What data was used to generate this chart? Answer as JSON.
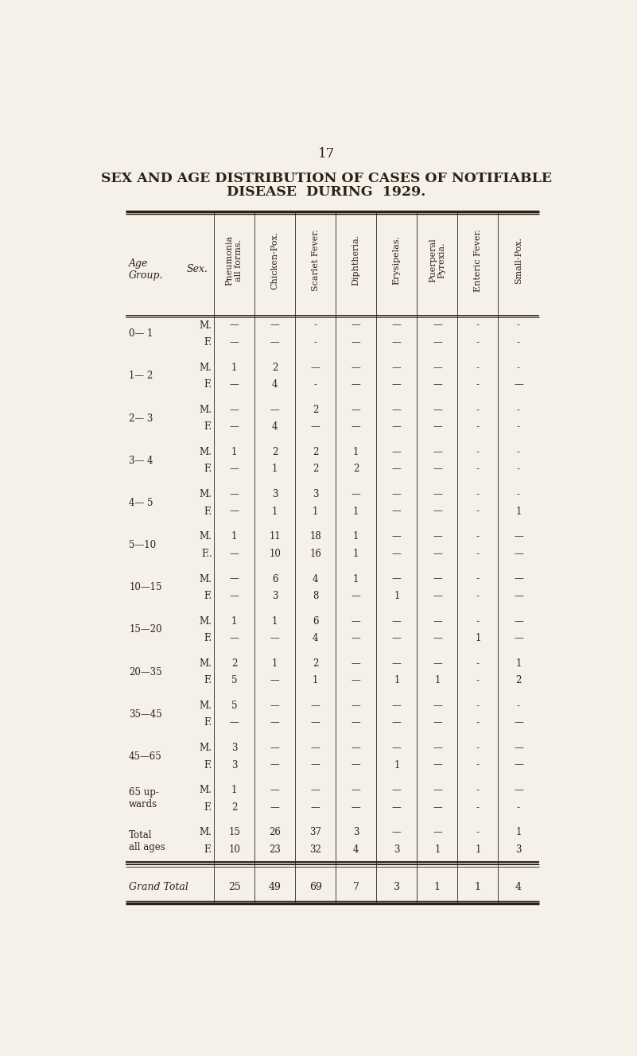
{
  "page_number": "17",
  "title_line1": "SEX AND AGE DISTRIBUTION OF CASES OF NOTIFIABLE",
  "title_line2": "DISEASE  DURING  1929.",
  "bg_color": "#f5f0e8",
  "text_color": "#2a2218",
  "col_headers": [
    "Pneumonia\nall forms.",
    "Chicken-Pox.",
    "Scarlet Fever.",
    "Diphtheria.",
    "Erysipelas.",
    "Puerperal\nPyrexia.",
    "Enteric Fever.",
    "Small-Pox."
  ],
  "groups": [
    {
      "age": "0— 1",
      "M": [
        "—",
        "—",
        "-",
        "—",
        "—",
        "—",
        "-",
        "-"
      ],
      "F": [
        "—",
        "—",
        "-",
        "—",
        "—",
        "—",
        "-",
        "-"
      ]
    },
    {
      "age": "1— 2",
      "M": [
        "1",
        "2",
        "—",
        "—",
        "—",
        "—",
        "-",
        "-"
      ],
      "F": [
        "—",
        "4",
        "-",
        "—",
        "—",
        "—",
        "-",
        "—"
      ]
    },
    {
      "age": "2— 3",
      "M": [
        "—",
        "—",
        "2",
        "—",
        "—",
        "—",
        "-",
        "-"
      ],
      "F": [
        "—",
        "4",
        "—",
        "—",
        "—",
        "—",
        "-",
        "-"
      ]
    },
    {
      "age": "3— 4",
      "M": [
        "1",
        "2",
        "2",
        "1",
        "—",
        "—",
        "-",
        "-"
      ],
      "F": [
        "—",
        "1",
        "2",
        "2",
        "—",
        "—",
        "-",
        "-"
      ]
    },
    {
      "age": "4— 5",
      "M": [
        "—",
        "3",
        "3",
        "—",
        "—",
        "—",
        "-",
        "-"
      ],
      "F": [
        "—",
        "1",
        "1",
        "1",
        "—",
        "—",
        "-",
        "1"
      ]
    },
    {
      "age": "5—10",
      "M": [
        "1",
        "11",
        "18",
        "1",
        "—",
        "—",
        "-",
        "—"
      ],
      "F": [
        "—",
        "10",
        "16",
        "1",
        "—",
        "—",
        "-",
        "—"
      ],
      "f_sex": "F.."
    },
    {
      "age": "10—15",
      "M": [
        "—",
        "6",
        "4",
        "1",
        "—",
        "—",
        "-",
        "—"
      ],
      "F": [
        "—",
        "3",
        "8",
        "—",
        "1",
        "—",
        "-",
        "—"
      ]
    },
    {
      "age": "15—20",
      "M": [
        "1",
        "1",
        "6",
        "—",
        "—",
        "—",
        "-",
        "—"
      ],
      "F": [
        "—",
        "—",
        "4",
        "—",
        "—",
        "—",
        "1",
        "—"
      ]
    },
    {
      "age": "20—35",
      "M": [
        "2",
        "1",
        "2",
        "—",
        "—",
        "—",
        "-",
        "1"
      ],
      "F": [
        "5",
        "—",
        "1",
        "—",
        "1",
        "1",
        "-",
        "2"
      ]
    },
    {
      "age": "35—45",
      "M": [
        "5",
        "—",
        "—",
        "—",
        "—",
        "—",
        "-",
        "-"
      ],
      "F": [
        "—",
        "—",
        "—",
        "—",
        "—",
        "—",
        "-",
        "—"
      ]
    },
    {
      "age": "45—65",
      "M": [
        "3",
        "—",
        "—",
        "—",
        "—",
        "—",
        "-",
        "—"
      ],
      "F": [
        "3",
        "—",
        "—",
        "—",
        "1",
        "—",
        "-",
        "—"
      ]
    },
    {
      "age": "65 up-\nwards",
      "M": [
        "1",
        "—",
        "—",
        "—",
        "—",
        "—",
        "-",
        "—"
      ],
      "F": [
        "2",
        "—",
        "—",
        "—",
        "—",
        "—",
        "-",
        "-"
      ]
    },
    {
      "age": "Total\nall ages",
      "M": [
        "15",
        "26",
        "37",
        "3",
        "—",
        "—",
        "-",
        "1"
      ],
      "F": [
        "10",
        "23",
        "32",
        "4",
        "3",
        "1",
        "1",
        "3"
      ]
    }
  ],
  "grand_total": [
    "25",
    "49",
    "69",
    "7",
    "3",
    "1",
    "1",
    "4"
  ],
  "grand_total_label": "Grand Total"
}
